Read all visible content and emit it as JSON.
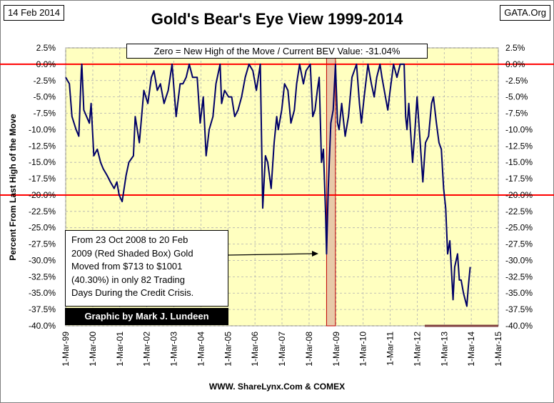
{
  "header": {
    "date": "14 Feb 2014",
    "source_tag": "GATA.Org",
    "title": "Gold's Bear's Eye View 1999-2014"
  },
  "legend_text": "Zero = New High of the Move / Current BEV Value:  -31.04%",
  "annotation": {
    "lines": [
      "From  23 Oct 2008 to 20 Feb",
      "2009 (Red Shaded Box)  Gold",
      "Moved from $713 to $1001",
      "(40.30%) in only 82 Trading",
      "Days During the Credit Crisis."
    ]
  },
  "credit": "Graphic by Mark J. Lundeen",
  "footer": "WWW. ShareLynx.Com & COMEX",
  "colors": {
    "plot_bg": "#ffffc0",
    "line": "#000066",
    "reference": "#ff0000",
    "shaded_box": "#e8c9a8"
  },
  "chart_data": {
    "type": "line",
    "title": "Gold's Bear's Eye View 1999-2014",
    "ylabel": "Percent  From Last High of the Move",
    "xlabel": "",
    "ylim": [
      -40,
      2.5
    ],
    "y_ticks": [
      "2.5%",
      "0.0%",
      "-2.5%",
      "-5.0%",
      "-7.5%",
      "-10.0%",
      "-12.5%",
      "-15.0%",
      "-17.5%",
      "-20.0%",
      "-22.5%",
      "-25.0%",
      "-27.5%",
      "-30.0%",
      "-32.5%",
      "-35.0%",
      "-37.5%",
      "-40.0%"
    ],
    "x_ticks": [
      "1-Mar-99",
      "1-Mar-00",
      "1-Mar-01",
      "1-Mar-02",
      "1-Mar-03",
      "1-Mar-04",
      "1-Mar-05",
      "1-Mar-06",
      "1-Mar-07",
      "1-Mar-08",
      "1-Mar-09",
      "1-Mar-10",
      "1-Mar-11",
      "1-Mar-12",
      "1-Mar-13",
      "1-Mar-14",
      "1-Mar-15"
    ],
    "xlim": [
      "1999-03-01",
      "2015-03-01"
    ],
    "grid": true,
    "reference_lines": [
      0,
      -20
    ],
    "shaded_range": [
      "2008-10-23",
      "2009-02-20"
    ],
    "current_value": -31.04,
    "series": [
      {
        "x": [
          "1999-03-01",
          "1999-04-20",
          "1999-05-25",
          "1999-07-20",
          "1999-08-25",
          "1999-09-28",
          "1999-10-05",
          "1999-11-01",
          "2000-01-15",
          "2000-02-07",
          "2000-03-15",
          "2000-05-01",
          "2000-06-15",
          "2000-07-20",
          "2000-09-10",
          "2000-10-25",
          "2000-12-15",
          "2001-01-20",
          "2001-02-20",
          "2001-04-02",
          "2001-05-25",
          "2001-07-01",
          "2001-09-01",
          "2001-09-25",
          "2001-11-20",
          "2002-01-20",
          "2002-03-15",
          "2002-05-01",
          "2002-06-05",
          "2002-07-20",
          "2002-09-01",
          "2002-10-20",
          "2002-12-15",
          "2003-02-05",
          "2003-04-01",
          "2003-05-25",
          "2003-07-01",
          "2003-08-15",
          "2003-09-25",
          "2003-11-10",
          "2004-01-10",
          "2004-02-20",
          "2004-04-01",
          "2004-05-10",
          "2004-06-20",
          "2004-08-10",
          "2004-09-20",
          "2004-11-15",
          "2004-12-05",
          "2005-01-15",
          "2005-03-10",
          "2005-04-20",
          "2005-06-01",
          "2005-07-15",
          "2005-09-01",
          "2005-10-20",
          "2005-12-10",
          "2006-02-01",
          "2006-03-20",
          "2006-05-12",
          "2006-06-14",
          "2006-07-20",
          "2006-08-20",
          "2006-10-05",
          "2006-11-15",
          "2006-12-20",
          "2007-01-10",
          "2007-02-25",
          "2007-04-05",
          "2007-05-20",
          "2007-06-30",
          "2007-08-15",
          "2007-09-15",
          "2007-10-25",
          "2007-12-15",
          "2008-01-20",
          "2008-03-17",
          "2008-04-20",
          "2008-05-20",
          "2008-06-20",
          "2008-07-15",
          "2008-08-15",
          "2008-09-10",
          "2008-10-10",
          "2008-10-23",
          "2008-11-15",
          "2008-12-20",
          "2009-01-20",
          "2009-02-20",
          "2009-03-20",
          "2009-04-10",
          "2009-05-15",
          "2009-07-01",
          "2009-08-15",
          "2009-10-01",
          "2009-12-02",
          "2010-01-10",
          "2010-02-05",
          "2010-03-15",
          "2010-05-05",
          "2010-06-20",
          "2010-07-28",
          "2010-09-01",
          "2010-10-15",
          "2010-11-10",
          "2011-01-28",
          "2011-03-01",
          "2011-04-15",
          "2011-06-01",
          "2011-07-15",
          "2011-09-06",
          "2011-09-26",
          "2011-10-15",
          "2011-11-08",
          "2011-12-29",
          "2012-01-25",
          "2012-02-28",
          "2012-04-10",
          "2012-05-16",
          "2012-06-20",
          "2012-08-01",
          "2012-09-10",
          "2012-10-05",
          "2012-11-15",
          "2012-12-20",
          "2013-01-20",
          "2013-02-20",
          "2013-03-20",
          "2013-04-15",
          "2013-05-15",
          "2013-06-28",
          "2013-07-20",
          "2013-08-27",
          "2013-09-20",
          "2013-10-15",
          "2013-11-15",
          "2013-12-31",
          "2014-01-20",
          "2014-02-14"
        ],
        "y": [
          -2,
          -3,
          -8,
          -10,
          -11,
          -1,
          0,
          -7,
          -9,
          -6,
          -14,
          -13,
          -15,
          -16,
          -17,
          -18,
          -19,
          -18,
          -20,
          -21,
          -17,
          -15,
          -14,
          -8,
          -12,
          -4,
          -6,
          -2,
          -1,
          -4,
          -3,
          -6,
          -4,
          0,
          -8,
          -3,
          -3,
          -2,
          0,
          -2,
          -2,
          -9,
          -5,
          -14,
          -10,
          -8,
          -3,
          0,
          -6,
          -4,
          -5,
          -5,
          -8,
          -7,
          -5,
          -2,
          0,
          -1,
          -4,
          0,
          -22,
          -14,
          -15,
          -19,
          -12,
          -8,
          -10,
          -7,
          -3,
          -4,
          -9,
          -7,
          -3,
          0,
          -3,
          -1,
          0,
          -8,
          -7,
          -4,
          -2,
          -15,
          -13,
          -23,
          -29,
          -19,
          -9,
          -7,
          0,
          -9,
          -10,
          -6,
          -11,
          -8,
          -2,
          0,
          -6,
          -9,
          -5,
          0,
          -3,
          -5,
          -2,
          0,
          -2,
          -7,
          -4,
          0,
          -2,
          0,
          0,
          -8,
          -10,
          -6,
          -15,
          -11,
          -5,
          -12,
          -18,
          -12,
          -11,
          -6,
          -5,
          -9,
          -12,
          -13,
          -19,
          -22,
          -29,
          -27,
          -36,
          -31,
          -29,
          -33,
          -33,
          -35,
          -37,
          -34,
          -31
        ]
      }
    ]
  }
}
